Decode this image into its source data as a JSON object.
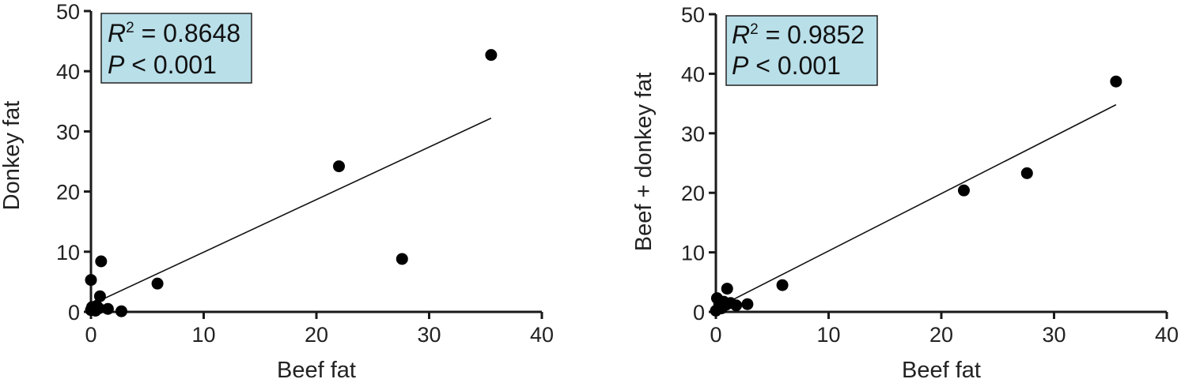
{
  "chart_data": [
    {
      "type": "scatter",
      "xlabel": "Beef fat",
      "ylabel": "Donkey fat",
      "xlim": [
        0,
        40
      ],
      "ylim": [
        0,
        50
      ],
      "xticks": [
        "0",
        "10",
        "20",
        "30",
        "40"
      ],
      "yticks": [
        "0",
        "10",
        "20",
        "30",
        "40",
        "50"
      ],
      "stats": {
        "r2_symbol": "R",
        "r2_sup": "2",
        "r2_text": " = 0.8648",
        "p_symbol": "P",
        "p_text": " < 0.001",
        "box_color": "#b9dfe9"
      },
      "points": [
        {
          "x": 0.0,
          "y": 5.3
        },
        {
          "x": 0.0,
          "y": 0.3
        },
        {
          "x": 0.1,
          "y": 0.8
        },
        {
          "x": 0.3,
          "y": 0.5
        },
        {
          "x": 0.4,
          "y": 0.2
        },
        {
          "x": 0.5,
          "y": 1.0
        },
        {
          "x": 0.7,
          "y": 0.6
        },
        {
          "x": 0.8,
          "y": 2.6
        },
        {
          "x": 0.9,
          "y": 8.4
        },
        {
          "x": 1.5,
          "y": 0.5
        },
        {
          "x": 2.7,
          "y": 0.1
        },
        {
          "x": 5.9,
          "y": 4.7
        },
        {
          "x": 22.0,
          "y": 24.2
        },
        {
          "x": 27.6,
          "y": 8.8
        },
        {
          "x": 35.5,
          "y": 42.7
        }
      ],
      "fit": {
        "x": [
          0,
          35.5
        ],
        "y": [
          1.2,
          32.2
        ]
      }
    },
    {
      "type": "scatter",
      "xlabel": "Beef fat",
      "ylabel": "Beef + donkey fat",
      "xlim": [
        0,
        40
      ],
      "ylim": [
        0,
        50
      ],
      "xticks": [
        "0",
        "10",
        "20",
        "30",
        "40"
      ],
      "yticks": [
        "0",
        "10",
        "20",
        "30",
        "40",
        "50"
      ],
      "stats": {
        "r2_symbol": "R",
        "r2_sup": "2",
        "r2_text": " = 0.9852",
        "p_symbol": "P",
        "p_text": " < 0.001",
        "box_color": "#b9dfe9"
      },
      "points": [
        {
          "x": 0.0,
          "y": 0.2
        },
        {
          "x": 0.1,
          "y": 2.3
        },
        {
          "x": 0.3,
          "y": 1.3
        },
        {
          "x": 0.5,
          "y": 0.6
        },
        {
          "x": 0.7,
          "y": 1.7
        },
        {
          "x": 0.9,
          "y": 1.2
        },
        {
          "x": 1.0,
          "y": 3.9
        },
        {
          "x": 1.3,
          "y": 1.5
        },
        {
          "x": 1.8,
          "y": 1.1
        },
        {
          "x": 2.8,
          "y": 1.3
        },
        {
          "x": 5.9,
          "y": 4.5
        },
        {
          "x": 22.0,
          "y": 20.4
        },
        {
          "x": 27.6,
          "y": 23.3
        },
        {
          "x": 35.5,
          "y": 38.7
        }
      ],
      "fit": {
        "x": [
          0,
          35.5
        ],
        "y": [
          0.6,
          34.8
        ]
      }
    }
  ]
}
